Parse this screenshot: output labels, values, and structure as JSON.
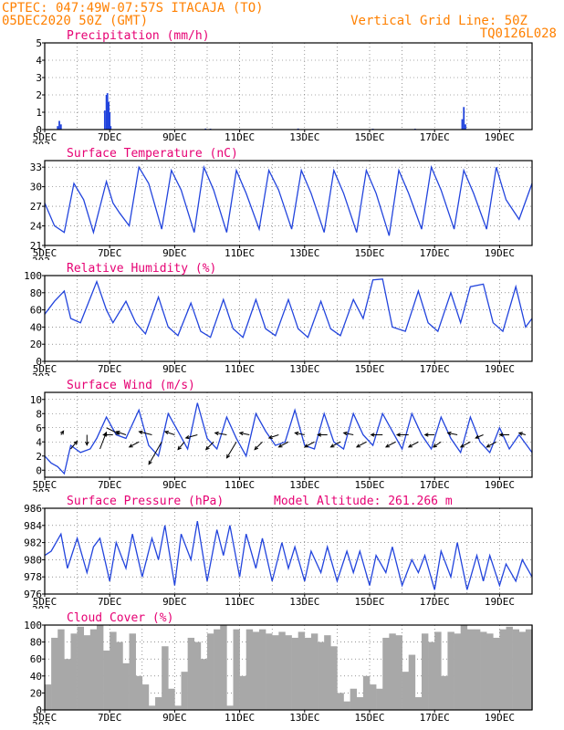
{
  "header": {
    "left_line1": "CPTEC:   047:49W-07:57S   ITACAJA (TO)",
    "left_line2": "05DEC2020 50Z (GMT)",
    "right_line1": "Vertical Grid Line: 50Z",
    "right_line2": "TQ0126L028"
  },
  "colors": {
    "header": "#ff8000",
    "panel_title": "#e60073",
    "series": "#2244dd",
    "cloud": "#a8a8a8",
    "wind_vector": "#000000"
  },
  "x_axis": {
    "tick_labels": [
      "5DEC",
      "7DEC",
      "9DEC",
      "11DEC",
      "13DEC",
      "15DEC",
      "17DEC",
      "19DEC"
    ],
    "clipped_label": "202",
    "start_day": 5,
    "end_day": 20
  },
  "chart_data": [
    {
      "type": "bar",
      "title": "Precipitation (mm/h)",
      "ylim": [
        0,
        5
      ],
      "yticks": [
        0,
        1,
        2,
        3,
        4,
        5
      ],
      "x": [
        5.4,
        5.45,
        5.5,
        6.85,
        6.9,
        6.93,
        6.97,
        7.0,
        7.03,
        9.95,
        10.1,
        12.8,
        15.1,
        16.4,
        17.85,
        17.9,
        17.95
      ],
      "values": [
        0.2,
        0.5,
        0.3,
        1.1,
        2.0,
        2.1,
        1.6,
        1.0,
        0.2,
        0.06,
        0.05,
        0.06,
        0.05,
        0.05,
        0.6,
        1.3,
        0.3
      ]
    },
    {
      "type": "line",
      "title": "Surface Temperature (nC)",
      "ylim": [
        21,
        34
      ],
      "yticks": [
        21,
        24,
        27,
        30,
        33
      ],
      "x": [
        5.0,
        5.3,
        5.6,
        5.9,
        6.2,
        6.5,
        6.9,
        7.1,
        7.3,
        7.6,
        7.9,
        8.2,
        8.6,
        8.9,
        9.2,
        9.6,
        9.9,
        10.2,
        10.6,
        10.9,
        11.2,
        11.6,
        11.9,
        12.2,
        12.6,
        12.9,
        13.2,
        13.6,
        13.9,
        14.2,
        14.6,
        14.9,
        15.2,
        15.6,
        15.9,
        16.2,
        16.6,
        16.9,
        17.2,
        17.6,
        17.9,
        18.2,
        18.6,
        18.9,
        19.2,
        19.6,
        20.0
      ],
      "values": [
        27.5,
        24.0,
        23.0,
        30.5,
        28.0,
        23.0,
        30.8,
        27.5,
        26.0,
        24.0,
        33.0,
        30.5,
        23.5,
        32.5,
        29.5,
        23.0,
        33.0,
        29.5,
        23.0,
        32.5,
        29.0,
        23.5,
        32.5,
        29.5,
        23.5,
        32.5,
        29.0,
        23.0,
        32.5,
        29.0,
        23.0,
        32.5,
        29.0,
        22.5,
        32.5,
        29.0,
        23.5,
        33.0,
        29.5,
        23.5,
        32.5,
        29.0,
        23.5,
        33.0,
        28.0,
        25.0,
        30.5
      ]
    },
    {
      "type": "line",
      "title": "Relative Humidity (%)",
      "ylim": [
        0,
        100
      ],
      "yticks": [
        0,
        20,
        40,
        60,
        80,
        100
      ],
      "x": [
        5.0,
        5.3,
        5.6,
        5.8,
        6.1,
        6.6,
        6.9,
        7.1,
        7.5,
        7.8,
        8.1,
        8.5,
        8.8,
        9.1,
        9.5,
        9.8,
        10.1,
        10.5,
        10.8,
        11.1,
        11.5,
        11.8,
        12.1,
        12.5,
        12.8,
        13.1,
        13.5,
        13.8,
        14.1,
        14.5,
        14.8,
        15.1,
        15.4,
        15.7,
        16.1,
        16.5,
        16.8,
        17.1,
        17.5,
        17.8,
        18.1,
        18.5,
        18.8,
        19.1,
        19.5,
        19.8,
        20.0
      ],
      "values": [
        55,
        70,
        82,
        50,
        45,
        93,
        60,
        45,
        70,
        45,
        32,
        75,
        40,
        30,
        68,
        35,
        28,
        72,
        38,
        28,
        72,
        38,
        30,
        72,
        38,
        28,
        70,
        38,
        30,
        72,
        50,
        95,
        96,
        40,
        35,
        82,
        45,
        35,
        80,
        45,
        87,
        90,
        45,
        35,
        87,
        40,
        50
      ]
    },
    {
      "type": "line",
      "title": "Surface Wind (m/s)",
      "ylim": [
        -1,
        11
      ],
      "yticks": [
        0,
        2,
        4,
        6,
        8,
        10
      ],
      "x": [
        5.0,
        5.2,
        5.4,
        5.6,
        5.8,
        6.1,
        6.4,
        6.6,
        6.9,
        7.2,
        7.5,
        7.9,
        8.2,
        8.5,
        8.8,
        9.1,
        9.4,
        9.7,
        10.0,
        10.3,
        10.6,
        10.9,
        11.2,
        11.5,
        11.8,
        12.1,
        12.4,
        12.7,
        13.0,
        13.3,
        13.6,
        13.9,
        14.2,
        14.5,
        14.8,
        15.1,
        15.4,
        15.7,
        16.0,
        16.3,
        16.6,
        16.9,
        17.2,
        17.5,
        17.8,
        18.1,
        18.4,
        18.7,
        19.0,
        19.3,
        19.6,
        20.0
      ],
      "values": [
        2.0,
        1.0,
        0.5,
        -0.5,
        3.5,
        2.5,
        3.0,
        4.5,
        7.5,
        5.0,
        4.5,
        8.5,
        3.5,
        2.0,
        8.0,
        5.5,
        3.0,
        9.5,
        4.5,
        3.0,
        7.5,
        4.5,
        2.0,
        8.0,
        5.5,
        3.5,
        4.0,
        8.5,
        3.5,
        3.0,
        8.0,
        4.0,
        3.0,
        8.0,
        5.0,
        3.5,
        8.0,
        5.5,
        3.0,
        8.0,
        5.0,
        3.0,
        7.5,
        4.5,
        2.5,
        7.5,
        4.0,
        2.5,
        6.0,
        3.0,
        5.0,
        2.5
      ],
      "vectors": [
        {
          "x": 5.5,
          "y": 5.0,
          "u": 0.4,
          "v": 0.6
        },
        {
          "x": 5.8,
          "y": 3.0,
          "u": 1.0,
          "v": 1.2
        },
        {
          "x": 6.3,
          "y": 5.0,
          "u": 0.0,
          "v": -1.6
        },
        {
          "x": 6.7,
          "y": 3.0,
          "u": 1.0,
          "v": 2.6
        },
        {
          "x": 6.9,
          "y": 6.0,
          "u": 2.0,
          "v": -1.0
        },
        {
          "x": 7.1,
          "y": 5.0,
          "u": -1.5,
          "v": 0.0
        },
        {
          "x": 7.5,
          "y": 5.0,
          "u": -1.5,
          "v": 0.5
        },
        {
          "x": 7.9,
          "y": 4.0,
          "u": -1.5,
          "v": -0.8
        },
        {
          "x": 8.3,
          "y": 5.0,
          "u": -2.0,
          "v": 0.5
        },
        {
          "x": 8.6,
          "y": 4.0,
          "u": -2.0,
          "v": -3.5
        },
        {
          "x": 9.0,
          "y": 5.0,
          "u": -1.5,
          "v": 0.5
        },
        {
          "x": 9.3,
          "y": 4.0,
          "u": -1.0,
          "v": -1.2
        },
        {
          "x": 9.7,
          "y": 5.0,
          "u": -1.8,
          "v": -0.5
        },
        {
          "x": 10.2,
          "y": 4.0,
          "u": -1.2,
          "v": -1.2
        },
        {
          "x": 10.6,
          "y": 5.0,
          "u": -1.8,
          "v": 0.3
        },
        {
          "x": 10.9,
          "y": 4.0,
          "u": -1.5,
          "v": -2.5
        },
        {
          "x": 11.3,
          "y": 5.0,
          "u": -1.5,
          "v": 0.3
        },
        {
          "x": 11.7,
          "y": 4.0,
          "u": -1.2,
          "v": -1.2
        },
        {
          "x": 12.2,
          "y": 5.0,
          "u": -1.5,
          "v": -0.5
        },
        {
          "x": 12.5,
          "y": 4.0,
          "u": -1.5,
          "v": -0.8
        },
        {
          "x": 13.0,
          "y": 5.0,
          "u": -1.5,
          "v": 0.3
        },
        {
          "x": 13.3,
          "y": 4.0,
          "u": -1.5,
          "v": -0.8
        },
        {
          "x": 13.7,
          "y": 5.0,
          "u": -1.5,
          "v": 0.0
        },
        {
          "x": 14.1,
          "y": 4.0,
          "u": -1.5,
          "v": -0.8
        },
        {
          "x": 14.5,
          "y": 5.0,
          "u": -1.5,
          "v": 0.3
        },
        {
          "x": 14.9,
          "y": 4.0,
          "u": -1.5,
          "v": -0.8
        },
        {
          "x": 15.4,
          "y": 5.0,
          "u": -1.8,
          "v": 0.0
        },
        {
          "x": 15.8,
          "y": 4.0,
          "u": -1.5,
          "v": -0.8
        },
        {
          "x": 16.2,
          "y": 5.0,
          "u": -1.8,
          "v": 0.0
        },
        {
          "x": 16.5,
          "y": 4.0,
          "u": -1.5,
          "v": -0.8
        },
        {
          "x": 17.0,
          "y": 5.0,
          "u": -1.5,
          "v": 0.0
        },
        {
          "x": 17.2,
          "y": 4.0,
          "u": -1.2,
          "v": -0.8
        },
        {
          "x": 17.7,
          "y": 5.0,
          "u": -1.5,
          "v": 0.3
        },
        {
          "x": 18.1,
          "y": 4.0,
          "u": -1.5,
          "v": -0.8
        },
        {
          "x": 18.5,
          "y": 5.0,
          "u": -1.2,
          "v": -0.5
        },
        {
          "x": 18.9,
          "y": 4.0,
          "u": -1.5,
          "v": -0.8
        },
        {
          "x": 19.3,
          "y": 5.0,
          "u": -1.5,
          "v": 0.0
        },
        {
          "x": 19.8,
          "y": 5.0,
          "u": -1.0,
          "v": 0.3
        }
      ]
    },
    {
      "type": "line",
      "title": "Surface Pressure (hPa)",
      "annotation": "Model Altitude: 261.266 m",
      "ylim": [
        976,
        986
      ],
      "yticks": [
        976,
        978,
        980,
        982,
        984,
        986
      ],
      "x": [
        5.0,
        5.2,
        5.5,
        5.7,
        6.0,
        6.3,
        6.5,
        6.7,
        7.0,
        7.2,
        7.5,
        7.7,
        8.0,
        8.3,
        8.5,
        8.7,
        9.0,
        9.2,
        9.5,
        9.7,
        10.0,
        10.3,
        10.5,
        10.7,
        11.0,
        11.2,
        11.5,
        11.7,
        12.0,
        12.3,
        12.5,
        12.7,
        13.0,
        13.2,
        13.5,
        13.7,
        14.0,
        14.3,
        14.5,
        14.7,
        15.0,
        15.2,
        15.5,
        15.7,
        16.0,
        16.3,
        16.5,
        16.7,
        17.0,
        17.2,
        17.5,
        17.7,
        18.0,
        18.3,
        18.5,
        18.7,
        19.0,
        19.2,
        19.5,
        19.7,
        20.0
      ],
      "values": [
        980.5,
        981.0,
        983.0,
        979.0,
        982.5,
        978.5,
        981.5,
        982.5,
        977.5,
        982.0,
        979.0,
        983.0,
        978.0,
        982.5,
        980.0,
        984.0,
        977.0,
        983.0,
        980.0,
        984.5,
        977.5,
        983.5,
        980.5,
        984.0,
        978.0,
        983.0,
        979.0,
        982.5,
        977.5,
        982.0,
        979.0,
        981.5,
        977.5,
        981.0,
        978.5,
        981.5,
        977.5,
        981.0,
        978.5,
        981.0,
        977.0,
        980.5,
        978.5,
        981.5,
        977.0,
        980.0,
        978.5,
        980.5,
        976.5,
        981.0,
        978.0,
        982.0,
        976.5,
        980.5,
        977.5,
        980.5,
        977.0,
        979.5,
        977.5,
        980.0,
        978.0
      ]
    },
    {
      "type": "area",
      "title": "Cloud Cover (%)",
      "ylim": [
        0,
        100
      ],
      "yticks": [
        0,
        20,
        40,
        60,
        80,
        100
      ],
      "x": [
        5.0,
        5.2,
        5.4,
        5.6,
        5.8,
        6.0,
        6.2,
        6.4,
        6.6,
        6.8,
        7.0,
        7.2,
        7.4,
        7.6,
        7.8,
        8.0,
        8.2,
        8.4,
        8.6,
        8.8,
        9.0,
        9.2,
        9.4,
        9.6,
        9.8,
        10.0,
        10.2,
        10.4,
        10.6,
        10.8,
        11.0,
        11.2,
        11.4,
        11.6,
        11.8,
        12.0,
        12.2,
        12.4,
        12.6,
        12.8,
        13.0,
        13.2,
        13.4,
        13.6,
        13.8,
        14.0,
        14.2,
        14.4,
        14.6,
        14.8,
        15.0,
        15.2,
        15.4,
        15.6,
        15.8,
        16.0,
        16.2,
        16.4,
        16.6,
        16.8,
        17.0,
        17.2,
        17.4,
        17.6,
        17.8,
        18.0,
        18.2,
        18.4,
        18.6,
        18.8,
        19.0,
        19.2,
        19.4,
        19.6,
        19.8,
        20.0
      ],
      "values": [
        30,
        85,
        95,
        60,
        90,
        98,
        88,
        95,
        100,
        70,
        92,
        80,
        55,
        90,
        40,
        30,
        5,
        15,
        75,
        25,
        5,
        45,
        85,
        80,
        60,
        90,
        95,
        100,
        5,
        95,
        40,
        95,
        92,
        95,
        90,
        88,
        92,
        88,
        85,
        92,
        85,
        90,
        80,
        88,
        75,
        20,
        10,
        25,
        15,
        40,
        30,
        25,
        85,
        90,
        88,
        45,
        65,
        15,
        90,
        80,
        92,
        40,
        92,
        90,
        100,
        95,
        95,
        92,
        90,
        85,
        95,
        98,
        95,
        92,
        95,
        100
      ]
    }
  ]
}
